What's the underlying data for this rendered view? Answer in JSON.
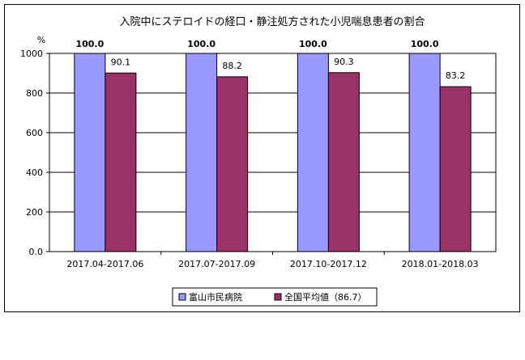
{
  "chart_data": {
    "type": "bar",
    "title": "入院中にステロイドの経口・静注処方された小児喘息患者の割合",
    "ylabel": "%",
    "ylim": [
      0,
      1000
    ],
    "ytick_labels": [
      "0.0",
      "200",
      "400",
      "600",
      "800",
      "1000"
    ],
    "ytick_values": [
      0,
      200,
      400,
      600,
      800,
      1000
    ],
    "categories": [
      "2017.04-2017.06",
      "2017.07-2017.09",
      "2017.10-2017.12",
      "2018.01-2018.03"
    ],
    "series": [
      {
        "name": "富山市民病院",
        "values": [
          1000,
          1000,
          1000,
          1000
        ],
        "labels": [
          "100.0",
          "100.0",
          "100.0",
          "100.0"
        ],
        "color": "#9999ff"
      },
      {
        "name": "全国平均値（86.7）",
        "values": [
          901,
          882,
          903,
          832
        ],
        "labels": [
          "90.1",
          "88.2",
          "90.3",
          "83.2"
        ],
        "color": "#993366"
      }
    ],
    "grid": true,
    "legend_position": "bottom"
  }
}
